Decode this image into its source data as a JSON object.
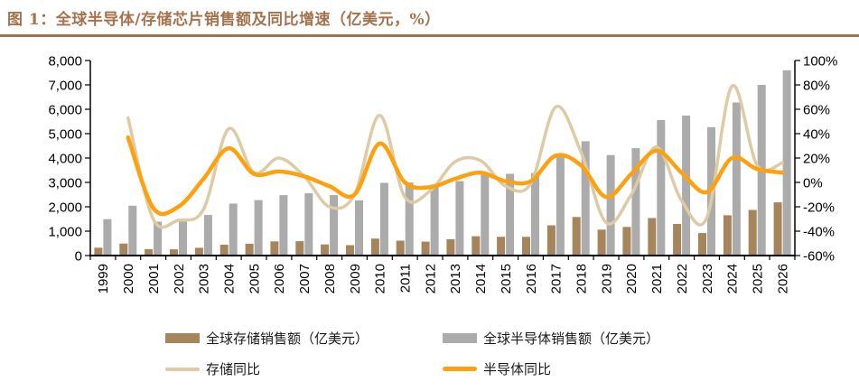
{
  "title": "图 1：全球半导体/存储芯片销售额及同比增速（亿美元，%）",
  "colors": {
    "accent_brown": "#A4734D",
    "memory_bar": "#A6845C",
    "semiconductor_bar": "#ABABAB",
    "memory_line": "#DCCBA4",
    "semiconductor_line": "#FFA00F",
    "axis_text": "#000000"
  },
  "chart_data": {
    "type": "combo-bar-line",
    "title": "全球半导体/存储芯片销售额及同比增速（亿美元，%）",
    "grid": "off",
    "legend_position": "bottom",
    "categories": [
      "1999",
      "2000",
      "2001",
      "2002",
      "2003",
      "2004",
      "2005",
      "2006",
      "2007",
      "2008",
      "2009",
      "2010",
      "2011",
      "2012",
      "2013",
      "2014",
      "2015",
      "2016",
      "2017",
      "2018",
      "2019",
      "2020",
      "2021",
      "2022",
      "2023",
      "2024",
      "2025",
      "2026"
    ],
    "left_axis": {
      "min": 0,
      "max": 8000,
      "step": 1000,
      "labels": [
        "0",
        "1,000",
        "2,000",
        "3,000",
        "4,000",
        "5,000",
        "6,000",
        "7,000",
        "8,000"
      ]
    },
    "right_axis": {
      "min": -60,
      "max": 100,
      "step": 20,
      "labels": [
        "-60%",
        "-40%",
        "-20%",
        "0%",
        "20%",
        "40%",
        "60%",
        "80%",
        "100%"
      ]
    },
    "series": [
      {
        "name": "全球存储销售额（亿美元）",
        "type": "bar",
        "axis": "left",
        "color": "#A6845C",
        "values": [
          322,
          492,
          260,
          255,
          320,
          446,
          485,
          581,
          590,
          455,
          426,
          695,
          611,
          570,
          670,
          792,
          772,
          768,
          1240,
          1580,
          1064,
          1175,
          1538,
          1298,
          923,
          1651,
          1870,
          2180
        ]
      },
      {
        "name": "全球半导体销售额（亿美元）",
        "type": "bar",
        "axis": "left",
        "color": "#ABABAB",
        "values": [
          1494,
          2044,
          1390,
          1407,
          1664,
          2130,
          2275,
          2477,
          2556,
          2486,
          2263,
          2983,
          2995,
          2916,
          3056,
          3358,
          3352,
          3389,
          4122,
          4688,
          4123,
          4404,
          5559,
          5741,
          5268,
          6276,
          7000,
          7600
        ]
      },
      {
        "name": "存储同比",
        "type": "line",
        "axis": "right",
        "color": "#DCCBA4",
        "stroke_width": 3.5,
        "values": [
          null,
          53,
          -30,
          -31,
          -22,
          44,
          8,
          20,
          5,
          -20,
          -10,
          55,
          -12,
          -7,
          17,
          18,
          -3,
          -1,
          62,
          25,
          -33,
          -10,
          29,
          -15,
          -29,
          79,
          14,
          16
        ]
      },
      {
        "name": "半导体同比",
        "type": "line",
        "axis": "right",
        "color": "#FFA00F",
        "stroke_width": 4.5,
        "values": [
          null,
          37,
          -21,
          -20,
          3,
          28,
          7,
          9,
          5,
          -3,
          -10,
          32,
          0,
          -4,
          3,
          8,
          1,
          1,
          22,
          14,
          -12,
          7,
          26,
          8,
          -8,
          20,
          11,
          8
        ]
      }
    ]
  },
  "legend": {
    "items": [
      {
        "label": "全球存储销售额（亿美元）",
        "swatch": "bar"
      },
      {
        "label": "全球半导体销售额（亿美元）",
        "swatch": "bar"
      },
      {
        "label": "存储同比",
        "swatch": "line"
      },
      {
        "label": "半导体同比",
        "swatch": "line"
      }
    ]
  }
}
